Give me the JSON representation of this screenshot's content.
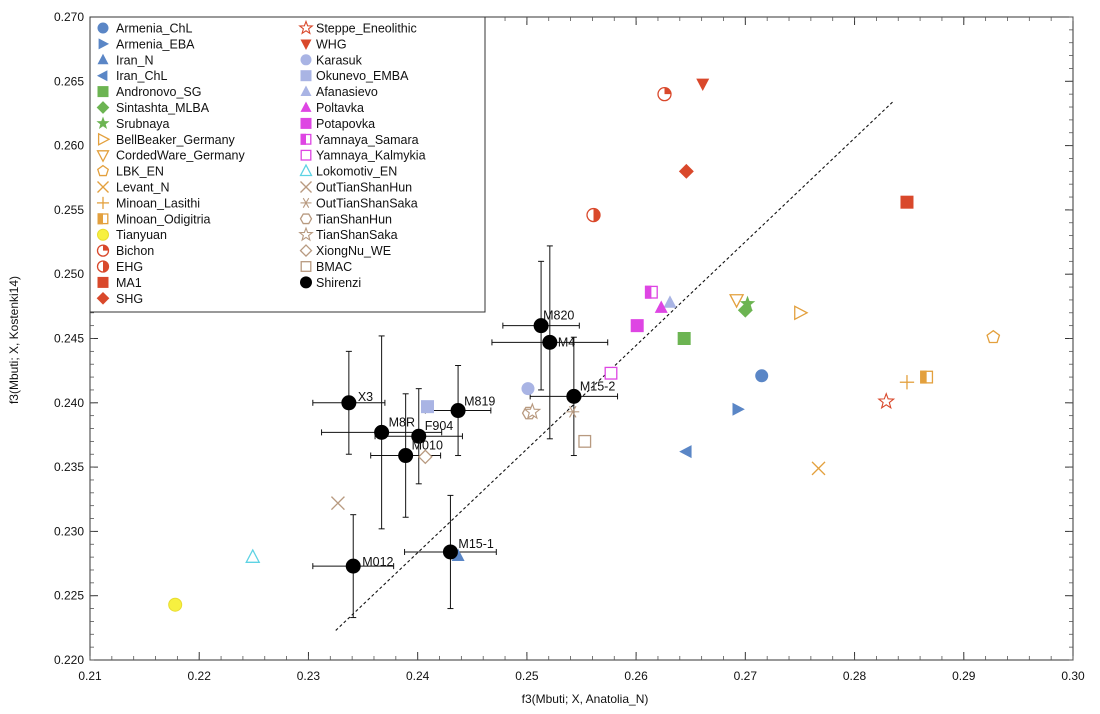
{
  "chart_data": {
    "type": "scatter",
    "xlabel": "f3(Mbuti; X, Anatolia_N)",
    "ylabel": "f3(Mbuti; X, Kostenki14)",
    "xlim": [
      0.21,
      0.3
    ],
    "ylim": [
      0.22,
      0.27
    ],
    "x_ticks": [
      "0.21",
      "0.22",
      "0.23",
      "0.24",
      "0.25",
      "0.26",
      "0.27",
      "0.28",
      "0.29",
      "0.30"
    ],
    "y_ticks": [
      "0.220",
      "0.225",
      "0.230",
      "0.235",
      "0.240",
      "0.245",
      "0.250",
      "0.255",
      "0.260",
      "0.265",
      "0.270"
    ],
    "grid": false,
    "legend_placement": "top-left",
    "diagonal_line": {
      "style": "dashed",
      "from": [
        0.2325,
        0.2223
      ],
      "to": [
        0.2835,
        0.2634
      ]
    },
    "legend_col1": [
      {
        "name": "Armenia_ChL",
        "marker": "circle",
        "color": "#5a86c6"
      },
      {
        "name": "Armenia_EBA",
        "marker": "tri-right",
        "color": "#5a86c6"
      },
      {
        "name": "Iran_N",
        "marker": "tri-up",
        "color": "#5a86c6"
      },
      {
        "name": "Iran_ChL",
        "marker": "tri-left",
        "color": "#5a86c6"
      },
      {
        "name": "Andronovo_SG",
        "marker": "square",
        "color": "#6cb452"
      },
      {
        "name": "Sintashta_MLBA",
        "marker": "diamond",
        "color": "#6cb452"
      },
      {
        "name": "Srubnaya",
        "marker": "star",
        "color": "#6cb452"
      },
      {
        "name": "BellBeaker_Germany",
        "marker": "tri-right-open",
        "color": "#e3a03d"
      },
      {
        "name": "CordedWare_Germany",
        "marker": "tri-down-open",
        "color": "#e3a03d"
      },
      {
        "name": "LBK_EN",
        "marker": "pentagon-open",
        "color": "#e3a03d"
      },
      {
        "name": "Levant_N",
        "marker": "x",
        "color": "#e3a03d"
      },
      {
        "name": "Minoan_Lasithi",
        "marker": "plus",
        "color": "#e3a03d"
      },
      {
        "name": "Minoan_Odigitria",
        "marker": "square-half",
        "color": "#e3a03d"
      },
      {
        "name": "Tianyuan",
        "marker": "circle",
        "color": "#f7f040"
      },
      {
        "name": "Bichon",
        "marker": "circle-quarter",
        "color": "#d9482b"
      },
      {
        "name": "EHG",
        "marker": "circle-half",
        "color": "#d9482b"
      },
      {
        "name": "MA1",
        "marker": "square",
        "color": "#d9482b"
      },
      {
        "name": "SHG",
        "marker": "diamond",
        "color": "#d9482b"
      }
    ],
    "legend_col2": [
      {
        "name": "Steppe_Eneolithic",
        "marker": "star-open",
        "color": "#d9482b"
      },
      {
        "name": "WHG",
        "marker": "tri-down",
        "color": "#d9482b"
      },
      {
        "name": "Karasuk",
        "marker": "circle",
        "color": "#a9b4e4"
      },
      {
        "name": "Okunevo_EMBA",
        "marker": "square",
        "color": "#a9b4e4"
      },
      {
        "name": "Afanasievo",
        "marker": "tri-up",
        "color": "#a9b4e4"
      },
      {
        "name": "Poltavka",
        "marker": "tri-up",
        "color": "#de45e3"
      },
      {
        "name": "Potapovka",
        "marker": "square",
        "color": "#de45e3"
      },
      {
        "name": "Yamnaya_Samara",
        "marker": "square-half",
        "color": "#de45e3"
      },
      {
        "name": "Yamnaya_Kalmykia",
        "marker": "square-open",
        "color": "#de45e3"
      },
      {
        "name": "Lokomotiv_EN",
        "marker": "tri-up-open",
        "color": "#5ed3e4"
      },
      {
        "name": "OutTianShanHun",
        "marker": "x",
        "color": "#b89a80"
      },
      {
        "name": "OutTianShanSaka",
        "marker": "asterisk",
        "color": "#b89a80"
      },
      {
        "name": "TianShanHun",
        "marker": "hexagon-open",
        "color": "#b89a80"
      },
      {
        "name": "TianShanSaka",
        "marker": "star-open",
        "color": "#b89a80"
      },
      {
        "name": "XiongNu_WE",
        "marker": "diamond-open",
        "color": "#b89a80"
      },
      {
        "name": "BMAC",
        "marker": "square-open",
        "color": "#b89a80"
      },
      {
        "name": "Shirenzi",
        "marker": "circle",
        "color": "#000000"
      }
    ],
    "reference_points": [
      {
        "group": "Armenia_ChL",
        "x": 0.2715,
        "y": 0.2421
      },
      {
        "group": "Armenia_EBA",
        "x": 0.2693,
        "y": 0.2395
      },
      {
        "group": "Iran_N",
        "x": 0.2437,
        "y": 0.2281
      },
      {
        "group": "Iran_ChL",
        "x": 0.2646,
        "y": 0.2362
      },
      {
        "group": "Andronovo_SG",
        "x": 0.2644,
        "y": 0.245
      },
      {
        "group": "Sintashta_MLBA",
        "x": 0.27,
        "y": 0.2472
      },
      {
        "group": "Srubnaya",
        "x": 0.2702,
        "y": 0.2477
      },
      {
        "group": "BellBeaker_Germany",
        "x": 0.275,
        "y": 0.247
      },
      {
        "group": "CordedWare_Germany",
        "x": 0.2692,
        "y": 0.248
      },
      {
        "group": "LBK_EN",
        "x": 0.2927,
        "y": 0.2451
      },
      {
        "group": "Levant_N",
        "x": 0.2767,
        "y": 0.2349
      },
      {
        "group": "Minoan_Lasithi",
        "x": 0.2848,
        "y": 0.2416
      },
      {
        "group": "Minoan_Odigitria",
        "x": 0.2866,
        "y": 0.242
      },
      {
        "group": "Tianyuan",
        "x": 0.2178,
        "y": 0.2243
      },
      {
        "group": "Bichon",
        "x": 0.2626,
        "y": 0.264
      },
      {
        "group": "EHG",
        "x": 0.2561,
        "y": 0.2546
      },
      {
        "group": "MA1",
        "x": 0.2848,
        "y": 0.2556
      },
      {
        "group": "SHG",
        "x": 0.2646,
        "y": 0.258
      },
      {
        "group": "Steppe_Eneolithic",
        "x": 0.2829,
        "y": 0.2401
      },
      {
        "group": "WHG",
        "x": 0.2661,
        "y": 0.2648
      },
      {
        "group": "Karasuk",
        "x": 0.2501,
        "y": 0.2411
      },
      {
        "group": "Okunevo_EMBA",
        "x": 0.2409,
        "y": 0.2397
      },
      {
        "group": "Afanasievo",
        "x": 0.2631,
        "y": 0.2478
      },
      {
        "group": "Poltavka",
        "x": 0.2623,
        "y": 0.2474
      },
      {
        "group": "Potapovka",
        "x": 0.2601,
        "y": 0.246
      },
      {
        "group": "Yamnaya_Samara",
        "x": 0.2614,
        "y": 0.2486
      },
      {
        "group": "Yamnaya_Kalmykia",
        "x": 0.2577,
        "y": 0.2423
      },
      {
        "group": "Lokomotiv_EN",
        "x": 0.2249,
        "y": 0.228
      },
      {
        "group": "OutTianShanHun",
        "x": 0.2327,
        "y": 0.2322
      },
      {
        "group": "OutTianShanSaka",
        "x": 0.2542,
        "y": 0.2393
      },
      {
        "group": "TianShanHun",
        "x": 0.2502,
        "y": 0.2392
      },
      {
        "group": "TianShanSaka",
        "x": 0.2505,
        "y": 0.2393
      },
      {
        "group": "XiongNu_WE",
        "x": 0.2407,
        "y": 0.2358
      },
      {
        "group": "BMAC",
        "x": 0.2553,
        "y": 0.237
      }
    ],
    "shirenzi_points": [
      {
        "label": "X3",
        "x": 0.2337,
        "y": 0.24,
        "xerr": 0.0033,
        "yerr": 0.004
      },
      {
        "label": "M8R",
        "x": 0.2367,
        "y": 0.2377,
        "xerr": 0.0055,
        "yerr": 0.0075
      },
      {
        "label": "F904",
        "x": 0.2401,
        "y": 0.2374,
        "xerr": 0.004,
        "yerr": 0.0037
      },
      {
        "label": "M010",
        "x": 0.2389,
        "y": 0.2359,
        "xerr": 0.0032,
        "yerr": 0.0048
      },
      {
        "label": "M819",
        "x": 0.2437,
        "y": 0.2394,
        "xerr": 0.003,
        "yerr": 0.0035
      },
      {
        "label": "M820",
        "x": 0.2513,
        "y": 0.246,
        "xerr": 0.0035,
        "yerr": 0.005
      },
      {
        "label": "M4",
        "x": 0.2521,
        "y": 0.2447,
        "xerr": 0.0053,
        "yerr": 0.0075
      },
      {
        "label": "M15-2",
        "x": 0.2543,
        "y": 0.2405,
        "xerr": 0.004,
        "yerr": 0.0046
      },
      {
        "label": "M012",
        "x": 0.2341,
        "y": 0.2273,
        "xerr": 0.0037,
        "yerr": 0.004
      },
      {
        "label": "M15-1",
        "x": 0.243,
        "y": 0.2284,
        "xerr": 0.0042,
        "yerr": 0.0044
      }
    ]
  }
}
